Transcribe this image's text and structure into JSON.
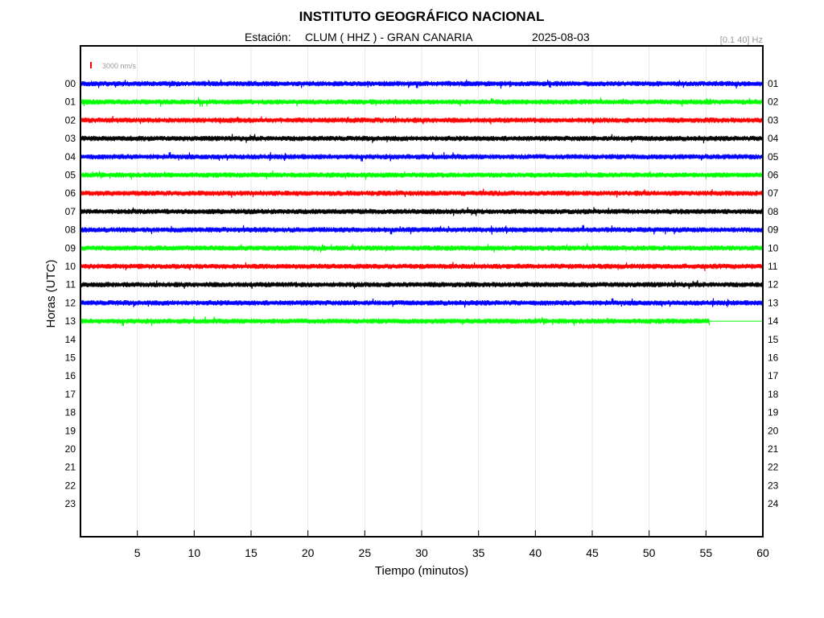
{
  "header": {
    "title": "INSTITUTO GEOGRÁFICO NACIONAL",
    "station_label": "Estación:",
    "station": "CLUM ( HHZ ) - GRAN CANARIA",
    "date": "2025-08-03",
    "filter": "[0.1 40] Hz"
  },
  "scale": {
    "label": "3000 nm/s",
    "color": "#ff0000"
  },
  "chart_data": {
    "type": "line",
    "title": "INSTITUTO GEOGRÁFICO NACIONAL",
    "xlabel": "Tiempo (minutos)",
    "ylabel": "Horas (UTC)",
    "xlim": [
      0,
      60
    ],
    "x_ticks": [
      "5",
      "10",
      "15",
      "20",
      "25",
      "30",
      "35",
      "40",
      "45",
      "50",
      "55",
      "60"
    ],
    "y_ticks_left": [
      "00",
      "01",
      "02",
      "03",
      "04",
      "05",
      "06",
      "07",
      "08",
      "09",
      "10",
      "11",
      "12",
      "13",
      "14",
      "15",
      "16",
      "17",
      "18",
      "19",
      "20",
      "21",
      "22",
      "23"
    ],
    "y_ticks_right": [
      "01",
      "02",
      "03",
      "04",
      "05",
      "06",
      "07",
      "08",
      "09",
      "10",
      "11",
      "12",
      "13",
      "14",
      "15",
      "16",
      "17",
      "18",
      "19",
      "20",
      "21",
      "22",
      "23",
      "24"
    ],
    "grid": "vertical",
    "trace_colors": [
      "#0000ff",
      "#00ff00",
      "#ff0000",
      "#000000"
    ],
    "traces": [
      {
        "hour": "00",
        "end_minute": 60,
        "color": "#0000ff"
      },
      {
        "hour": "01",
        "end_minute": 60,
        "color": "#00ff00"
      },
      {
        "hour": "02",
        "end_minute": 60,
        "color": "#ff0000"
      },
      {
        "hour": "03",
        "end_minute": 60,
        "color": "#000000"
      },
      {
        "hour": "04",
        "end_minute": 60,
        "color": "#0000ff"
      },
      {
        "hour": "05",
        "end_minute": 60,
        "color": "#00ff00"
      },
      {
        "hour": "06",
        "end_minute": 60,
        "color": "#ff0000"
      },
      {
        "hour": "07",
        "end_minute": 60,
        "color": "#000000"
      },
      {
        "hour": "08",
        "end_minute": 60,
        "color": "#0000ff"
      },
      {
        "hour": "09",
        "end_minute": 60,
        "color": "#00ff00"
      },
      {
        "hour": "10",
        "end_minute": 60,
        "color": "#ff0000"
      },
      {
        "hour": "11",
        "end_minute": 60,
        "color": "#000000"
      },
      {
        "hour": "12",
        "end_minute": 60,
        "color": "#0000ff"
      },
      {
        "hour": "13",
        "end_minute": 55.3,
        "color": "#00ff00"
      }
    ]
  }
}
